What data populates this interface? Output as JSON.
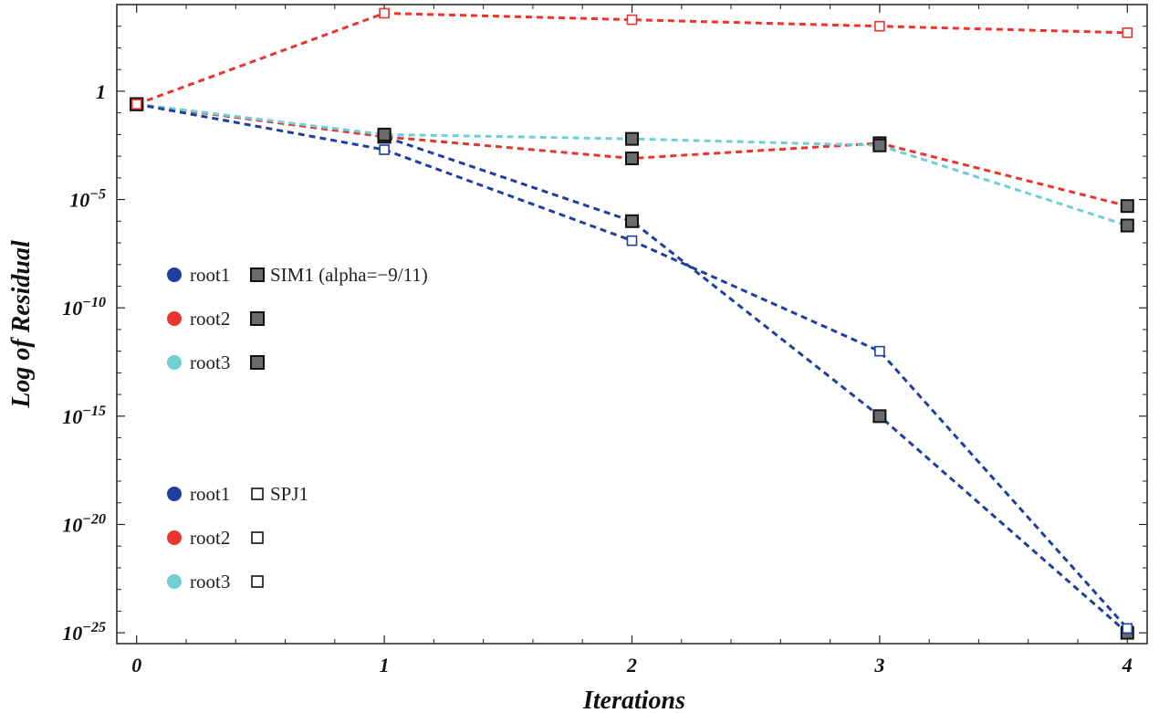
{
  "chart_data": {
    "type": "line",
    "title": "",
    "xlabel": "Iterations",
    "ylabel": "Log of Residual",
    "yscale": "log10",
    "x": [
      0,
      1,
      2,
      3,
      4
    ],
    "xlim": [
      -0.08,
      4.08
    ],
    "ylim_exp": [
      -25.5,
      4
    ],
    "x_ticks": [
      {
        "value": 0,
        "label": "0"
      },
      {
        "value": 1,
        "label": "1"
      },
      {
        "value": 2,
        "label": "2"
      },
      {
        "value": 3,
        "label": "3"
      },
      {
        "value": 4,
        "label": "4"
      }
    ],
    "y_ticks": [
      {
        "exp": 0,
        "label": "1",
        "sup": ""
      },
      {
        "exp": -5,
        "label": "10",
        "sup": "−5"
      },
      {
        "exp": -10,
        "label": "10",
        "sup": "−10"
      },
      {
        "exp": -15,
        "label": "10",
        "sup": "−15"
      },
      {
        "exp": -20,
        "label": "10",
        "sup": "−20"
      },
      {
        "exp": -25,
        "label": "10",
        "sup": "−25"
      }
    ],
    "colors": {
      "root1": "#1f3fa0",
      "root2": "#e8352e",
      "root3": "#6fcfd3"
    },
    "series": [
      {
        "name": "root1 SIM1",
        "color": "#1f3fa0",
        "marker": "filled",
        "log10_values": [
          -0.6,
          -2.1,
          -6.0,
          -15.0,
          -25.0
        ]
      },
      {
        "name": "root2 SIM1",
        "color": "#e8352e",
        "marker": "filled",
        "log10_values": [
          -0.6,
          -2.1,
          -3.1,
          -2.4,
          -5.3
        ]
      },
      {
        "name": "root3 SIM1",
        "color": "#6fcfd3",
        "marker": "filled",
        "log10_values": [
          -0.6,
          -2.0,
          -2.2,
          -2.5,
          -6.2
        ]
      },
      {
        "name": "root1 SPJ1",
        "color": "#1f3fa0",
        "marker": "open",
        "log10_values": [
          -0.6,
          -2.7,
          -6.9,
          -12.0,
          -24.8
        ]
      },
      {
        "name": "root2 SPJ1",
        "color": "#e8352e",
        "marker": "open",
        "log10_values": [
          -0.6,
          3.6,
          3.3,
          3.0,
          2.7
        ]
      }
    ],
    "legend": [
      {
        "group": "SIM1 (alpha=−9/11)",
        "entries": [
          {
            "dot_color": "#1f3fa0",
            "label": "root1",
            "marker": "filled",
            "suffix": "SIM1 (alpha=−9/11)"
          },
          {
            "dot_color": "#e8352e",
            "label": "root2",
            "marker": "filled",
            "suffix": ""
          },
          {
            "dot_color": "#6fcfd3",
            "label": "root3",
            "marker": "filled",
            "suffix": ""
          }
        ]
      },
      {
        "group": "SPJ1",
        "entries": [
          {
            "dot_color": "#1f3fa0",
            "label": "root1",
            "marker": "open",
            "suffix": "SPJ1"
          },
          {
            "dot_color": "#e8352e",
            "label": "root2",
            "marker": "open",
            "suffix": ""
          },
          {
            "dot_color": "#6fcfd3",
            "label": "root3",
            "marker": "open",
            "suffix": ""
          }
        ]
      }
    ],
    "legend_placement": "left-middle"
  }
}
